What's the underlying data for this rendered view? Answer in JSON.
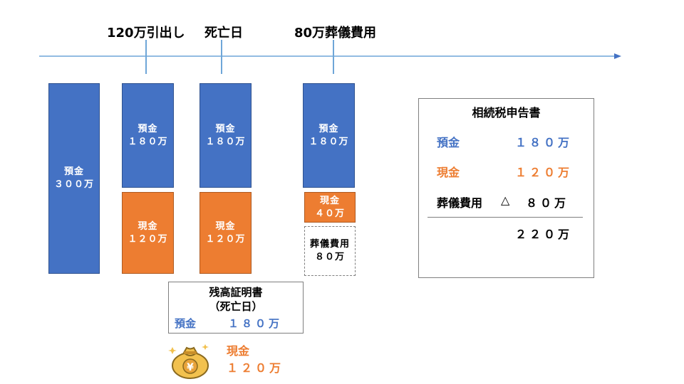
{
  "timeline": {
    "events": [
      {
        "label": "120万引出し"
      },
      {
        "label": "死亡日"
      },
      {
        "label": "80万葬儀費用"
      }
    ]
  },
  "columns": [
    {
      "deposit_label": "預金",
      "deposit_value": "３００万"
    },
    {
      "deposit_label": "預金",
      "deposit_value": "１８０万",
      "cash_label": "現金",
      "cash_value": "１２０万"
    },
    {
      "deposit_label": "預金",
      "deposit_value": "１８０万",
      "cash_label": "現金",
      "cash_value": "１２０万"
    },
    {
      "deposit_label": "預金",
      "deposit_value": "１８０万",
      "cash_label": "現金",
      "cash_value": "４０万",
      "funeral_label": "葬儀費用",
      "funeral_value": "８０万"
    }
  ],
  "balance_certificate": {
    "title": "残高証明書",
    "subtitle": "（死亡日）",
    "deposit_label": "預金",
    "deposit_value": "１８０万"
  },
  "cash_note": {
    "icon": "money-bag-icon",
    "label": "現金",
    "value": "１２０万"
  },
  "tax_return": {
    "title": "相続税申告書",
    "rows": [
      {
        "label": "預金",
        "value": "１８０万"
      },
      {
        "label": "現金",
        "value": "１２０万"
      },
      {
        "label": "葬儀費用",
        "prefix": "△",
        "value": "８０万"
      }
    ],
    "total": "２２０万"
  },
  "colors": {
    "deposit": "#4472c4",
    "cash": "#ed7d31",
    "timeline": "#6fa6d8"
  }
}
